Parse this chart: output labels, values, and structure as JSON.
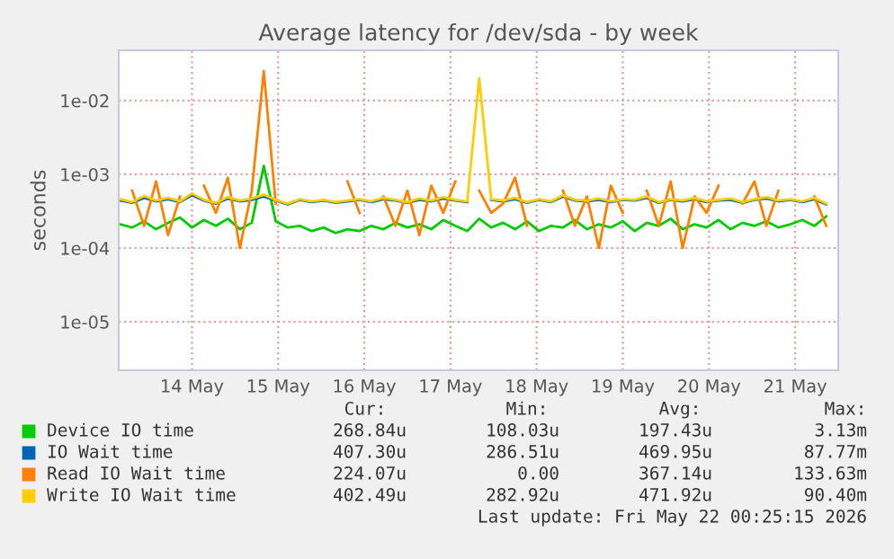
{
  "chart_data": {
    "type": "line",
    "title": "Average latency for /dev/sda - by week",
    "ylabel": "seconds",
    "x": [
      "2026-05-13T04:00",
      "2026-05-13T07:20",
      "2026-05-13T10:40",
      "2026-05-13T14:00",
      "2026-05-13T17:20",
      "2026-05-13T20:40",
      "2026-05-14T00:00",
      "2026-05-14T03:20",
      "2026-05-14T06:40",
      "2026-05-14T10:00",
      "2026-05-14T13:20",
      "2026-05-14T16:40",
      "2026-05-14T20:00",
      "2026-05-14T23:20",
      "2026-05-15T02:40",
      "2026-05-15T06:00",
      "2026-05-15T09:20",
      "2026-05-15T12:40",
      "2026-05-15T16:00",
      "2026-05-15T19:20",
      "2026-05-15T22:40",
      "2026-05-16T02:00",
      "2026-05-16T05:20",
      "2026-05-16T08:40",
      "2026-05-16T12:00",
      "2026-05-16T15:20",
      "2026-05-16T18:40",
      "2026-05-16T22:00",
      "2026-05-17T01:20",
      "2026-05-17T04:40",
      "2026-05-17T08:00",
      "2026-05-17T11:20",
      "2026-05-17T14:40",
      "2026-05-17T18:00",
      "2026-05-17T21:20",
      "2026-05-18T00:40",
      "2026-05-18T04:00",
      "2026-05-18T07:20",
      "2026-05-18T10:40",
      "2026-05-18T14:00",
      "2026-05-18T17:20",
      "2026-05-18T20:40",
      "2026-05-19T00:00",
      "2026-05-19T03:20",
      "2026-05-19T06:40",
      "2026-05-19T10:00",
      "2026-05-19T13:20",
      "2026-05-19T16:40",
      "2026-05-19T20:00",
      "2026-05-19T23:20",
      "2026-05-20T02:40",
      "2026-05-20T06:00",
      "2026-05-20T09:20",
      "2026-05-20T12:40",
      "2026-05-20T16:00",
      "2026-05-20T19:20",
      "2026-05-20T22:40",
      "2026-05-21T02:00",
      "2026-05-21T05:20",
      "2026-05-21T08:40"
    ],
    "series": [
      {
        "name": "Device IO time",
        "color": "#00cc00",
        "values": [
          0.00021,
          0.00019,
          0.00023,
          0.00018,
          0.00022,
          0.00026,
          0.00019,
          0.00024,
          0.0002,
          0.00025,
          0.00018,
          0.00022,
          0.0013,
          0.00023,
          0.00019,
          0.0002,
          0.00017,
          0.00019,
          0.00016,
          0.00018,
          0.00017,
          0.0002,
          0.00018,
          0.00022,
          0.00019,
          0.00021,
          0.00018,
          0.00024,
          0.0002,
          0.00017,
          0.00025,
          0.00019,
          0.00022,
          0.00018,
          0.00023,
          0.00017,
          0.0002,
          0.00019,
          0.00024,
          0.00018,
          0.00021,
          0.00019,
          0.00023,
          0.00017,
          0.00022,
          0.0002,
          0.00025,
          0.00018,
          0.00021,
          0.00019,
          0.00024,
          0.00018,
          0.00022,
          0.0002,
          0.00023,
          0.00019,
          0.00021,
          0.00024,
          0.0002,
          0.00027
        ]
      },
      {
        "name": "IO Wait time",
        "color": "#0066b3",
        "values": [
          0.00044,
          0.00041,
          0.00048,
          0.00043,
          0.00046,
          0.00042,
          0.00052,
          0.00044,
          0.0004,
          0.00047,
          0.00043,
          0.00045,
          0.0005,
          0.00044,
          0.00039,
          0.00045,
          0.00042,
          0.00044,
          0.00041,
          0.00043,
          0.00045,
          0.00042,
          0.00046,
          0.00044,
          0.00041,
          0.00045,
          0.00043,
          0.00047,
          0.00044,
          0.00042,
          null,
          0.00045,
          0.00043,
          0.00046,
          0.00041,
          0.00045,
          0.00042,
          0.0005,
          0.00044,
          0.00043,
          0.00045,
          0.00042,
          0.00045,
          0.00044,
          0.00048,
          0.00041,
          0.00045,
          0.00043,
          0.00046,
          0.00042,
          0.00044,
          0.00045,
          0.00041,
          0.00045,
          0.00047,
          0.00043,
          0.00045,
          0.00042,
          0.00046,
          0.00039
        ]
      },
      {
        "name": "Read IO Wait time",
        "color": "#ff8000",
        "values": [
          null,
          0.0006,
          0.0002,
          0.0008,
          0.00015,
          0.0005,
          null,
          0.0007,
          0.0003,
          0.0009,
          0.0001,
          0.0006,
          0.025,
          0.0004,
          null,
          null,
          null,
          null,
          null,
          0.0008,
          0.0003,
          null,
          0.0005,
          0.0002,
          0.0006,
          0.00015,
          0.0007,
          0.0003,
          0.0008,
          null,
          0.0006,
          0.0003,
          0.0004,
          0.0009,
          0.0002,
          null,
          null,
          0.0006,
          0.0002,
          0.0005,
          0.0001,
          0.0007,
          0.0003,
          null,
          0.0006,
          0.0002,
          0.0008,
          0.0001,
          0.0005,
          0.0003,
          0.0007,
          null,
          0.0004,
          0.0008,
          0.0002,
          0.0006,
          null,
          null,
          0.0005,
          0.0002
        ]
      },
      {
        "name": "Write IO Wait time",
        "color": "#ffcc00",
        "values": [
          0.00046,
          0.00042,
          0.00051,
          0.00044,
          0.00048,
          0.00043,
          0.00055,
          0.00045,
          0.00041,
          0.00049,
          0.00044,
          0.00047,
          0.00053,
          0.00045,
          0.0004,
          0.00046,
          0.00043,
          0.00045,
          0.00042,
          0.00044,
          0.00046,
          0.00043,
          0.00048,
          0.00045,
          0.00042,
          0.00047,
          0.00044,
          0.00049,
          0.00045,
          0.00043,
          0.02,
          0.00046,
          0.00044,
          0.00048,
          0.00042,
          0.00046,
          0.00043,
          0.00052,
          0.00045,
          0.00044,
          0.00047,
          0.00043,
          0.00046,
          0.00045,
          0.0005,
          0.00042,
          0.00046,
          0.00044,
          0.00048,
          0.00043,
          0.00045,
          0.00047,
          0.00042,
          0.00046,
          0.00049,
          0.00044,
          0.00046,
          0.00043,
          0.00048,
          0.0004
        ]
      }
    ],
    "log": "y",
    "xlim": [
      "2026-05-13T03:36",
      "2026-05-21T12:00"
    ],
    "ylim": [
      2.2e-06,
      0.048
    ],
    "xticks": [
      {
        "value": "2026-05-14",
        "label": "14 May"
      },
      {
        "value": "2026-05-15",
        "label": "15 May"
      },
      {
        "value": "2026-05-16",
        "label": "16 May"
      },
      {
        "value": "2026-05-17",
        "label": "17 May"
      },
      {
        "value": "2026-05-18",
        "label": "18 May"
      },
      {
        "value": "2026-05-19",
        "label": "19 May"
      },
      {
        "value": "2026-05-20",
        "label": "20 May"
      },
      {
        "value": "2026-05-21",
        "label": "21 May"
      }
    ],
    "yticks": [
      {
        "value": 1e-05,
        "label": "1e-05"
      },
      {
        "value": 0.0001,
        "label": "1e-04"
      },
      {
        "value": 0.001,
        "label": "1e-03"
      },
      {
        "value": 0.01,
        "label": "1e-02"
      }
    ],
    "grid": true,
    "legend": "bottom",
    "line_style": "solid",
    "annotations": [
      "Cur:",
      "Min:",
      "Avg:",
      "Max:",
      "268.84u",
      "108.03u",
      "197.43u",
      "3.13m",
      "407.30u",
      "286.51u",
      "469.95u",
      "87.77m",
      "224.07u",
      "0.00",
      "367.14u",
      "133.63m",
      "402.49u",
      "282.92u",
      "471.92u",
      "90.40m",
      "Last update: Fri May 22 00:25:15 2026"
    ]
  }
}
